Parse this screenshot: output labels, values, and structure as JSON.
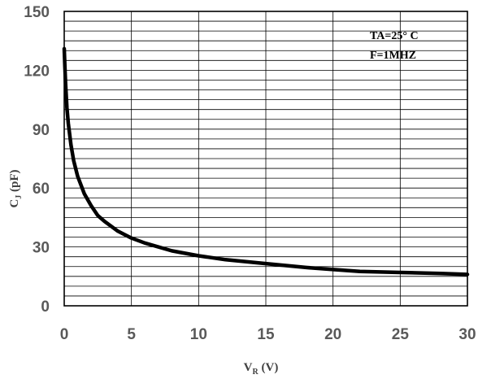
{
  "chart_data": {
    "type": "line",
    "title": "",
    "xlabel": "V_R (V)",
    "ylabel": "C_J (pF)",
    "xlabel_main": "V",
    "xlabel_sub": "R",
    "xlabel_rest": " (V)",
    "ylabel_main": "C",
    "ylabel_sub": "J",
    "ylabel_rest": " (pF)",
    "xlim": [
      0,
      30
    ],
    "ylim": [
      0,
      150
    ],
    "x_ticks": [
      0,
      5,
      10,
      15,
      20,
      25,
      30
    ],
    "x_tick_labels": [
      "0",
      "5",
      "10",
      "15",
      "20",
      "25",
      "30"
    ],
    "y_ticks": [
      0,
      30,
      60,
      90,
      120,
      150
    ],
    "y_tick_labels": [
      "0",
      "30",
      "60",
      "90",
      "120",
      "150"
    ],
    "y_minor_step": 5,
    "grid": true,
    "annotations": [
      "TA=25° C",
      "F=1MHZ"
    ],
    "series": [
      {
        "x": [
          0,
          0.05,
          0.1,
          0.2,
          0.3,
          0.5,
          0.7,
          1,
          1.5,
          2,
          2.5,
          3,
          4,
          5,
          6,
          8,
          10,
          12,
          15,
          18,
          20,
          22,
          25,
          28,
          30
        ],
        "y": [
          131,
          122,
          113,
          101,
          93,
          82,
          74,
          66,
          57,
          51,
          46,
          43,
          38,
          34.5,
          32,
          28,
          25.5,
          23.5,
          21.5,
          19.5,
          18.5,
          17.5,
          17,
          16.5,
          16
        ]
      }
    ],
    "colors": {
      "curve": "#000000",
      "grid": "#000000",
      "tick_text": "#595959",
      "label_text": "#404040"
    }
  }
}
